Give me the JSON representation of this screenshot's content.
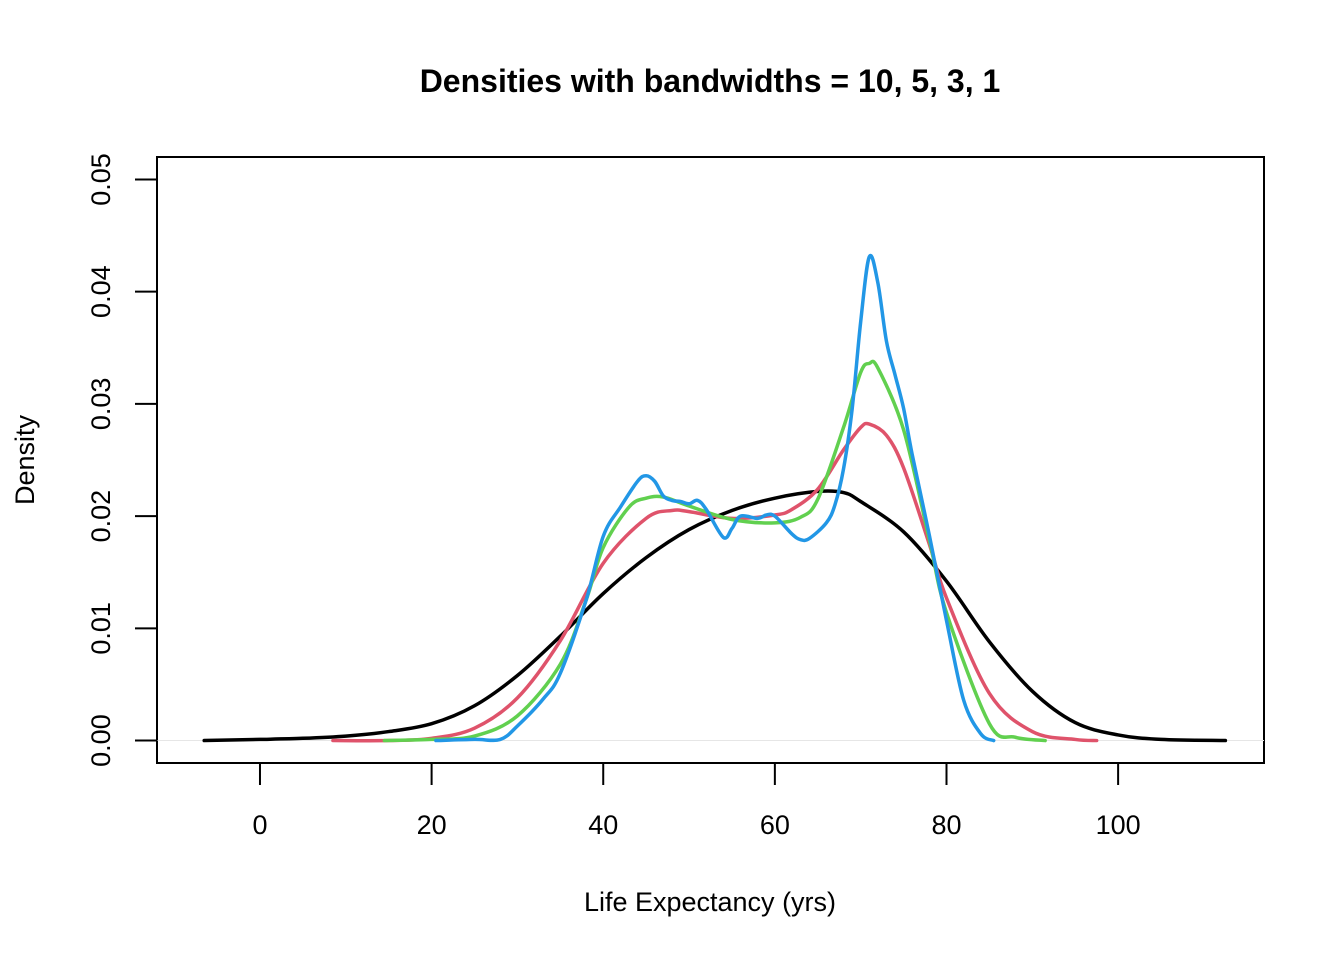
{
  "chart_data": {
    "type": "line",
    "title": "Densities with bandwidths = 10, 5, 3, 1",
    "xlabel": "Life Expectancy (yrs)",
    "ylabel": "Density",
    "xlim": [
      -12,
      117
    ],
    "ylim": [
      -0.002,
      0.052
    ],
    "xticks": [
      0,
      20,
      40,
      60,
      80,
      100
    ],
    "xtick_labels": [
      "0",
      "20",
      "40",
      "60",
      "80",
      "100"
    ],
    "yticks": [
      0,
      0.01,
      0.02,
      0.03,
      0.04,
      0.05
    ],
    "ytick_labels": [
      "0.00",
      "0.01",
      "0.02",
      "0.03",
      "0.04",
      "0.05"
    ],
    "grid": false,
    "legend": "none",
    "series": [
      {
        "color": "#000000",
        "x": [
          -6.5,
          0,
          5,
          10,
          15,
          20,
          25,
          30,
          35,
          40,
          45,
          50,
          55,
          60,
          65,
          68,
          70,
          75,
          80,
          85,
          90,
          95,
          100,
          105,
          112.5
        ],
        "y": [
          0.0,
          0.0001,
          0.0002,
          0.0004,
          0.0008,
          0.0015,
          0.0031,
          0.0058,
          0.0093,
          0.0131,
          0.0163,
          0.0188,
          0.0205,
          0.0216,
          0.0222,
          0.0221,
          0.0213,
          0.0186,
          0.0142,
          0.0088,
          0.0044,
          0.0016,
          0.0005,
          0.0001,
          0.0
        ]
      },
      {
        "color": "#DF536B",
        "x": [
          8.5,
          15,
          20,
          25,
          30,
          35,
          40,
          45,
          48,
          50,
          55,
          60,
          62,
          65,
          68,
          70,
          71,
          73,
          75,
          78,
          80,
          85,
          90,
          95,
          97.5
        ],
        "y": [
          0.0,
          0.0,
          0.0002,
          0.0011,
          0.0038,
          0.0089,
          0.0158,
          0.0198,
          0.0205,
          0.0204,
          0.0198,
          0.0201,
          0.0206,
          0.0224,
          0.0259,
          0.0279,
          0.0282,
          0.0272,
          0.0243,
          0.0175,
          0.0127,
          0.0042,
          0.0008,
          0.0001,
          0.0
        ]
      },
      {
        "color": "#61D04F",
        "x": [
          14.5,
          20,
          25,
          30,
          35,
          38,
          40,
          43,
          45,
          47,
          50,
          55,
          60,
          63,
          65,
          68,
          70,
          71,
          72,
          75,
          78,
          80,
          85,
          88,
          91.5
        ],
        "y": [
          0.0,
          0.0001,
          0.0004,
          0.0022,
          0.0068,
          0.0125,
          0.0172,
          0.0208,
          0.0216,
          0.0217,
          0.0209,
          0.0197,
          0.0194,
          0.0199,
          0.0215,
          0.0279,
          0.0328,
          0.0336,
          0.0332,
          0.0277,
          0.0179,
          0.0114,
          0.0015,
          0.0003,
          0.0
        ]
      },
      {
        "color": "#2297E6",
        "x": [
          20.5,
          25,
          28,
          30,
          33,
          35,
          38,
          40,
          42,
          44,
          45,
          46,
          47,
          48,
          49,
          50,
          51,
          52,
          54,
          55,
          56,
          58,
          59,
          60,
          62,
          63,
          64,
          66,
          67,
          68,
          69,
          70,
          71,
          72,
          73,
          74,
          75,
          76,
          78,
          80,
          82,
          84,
          85.5
        ],
        "y": [
          0.0,
          0.0001,
          0.0001,
          0.0013,
          0.0037,
          0.006,
          0.0125,
          0.0182,
          0.0208,
          0.0231,
          0.0236,
          0.0231,
          0.0218,
          0.0214,
          0.0213,
          0.0211,
          0.0214,
          0.0206,
          0.0181,
          0.0189,
          0.02,
          0.0198,
          0.0201,
          0.02,
          0.0184,
          0.0179,
          0.018,
          0.0194,
          0.021,
          0.0242,
          0.0295,
          0.0373,
          0.0431,
          0.0408,
          0.0356,
          0.0326,
          0.0296,
          0.0255,
          0.0183,
          0.0107,
          0.0036,
          0.0006,
          0.0
        ]
      }
    ]
  }
}
